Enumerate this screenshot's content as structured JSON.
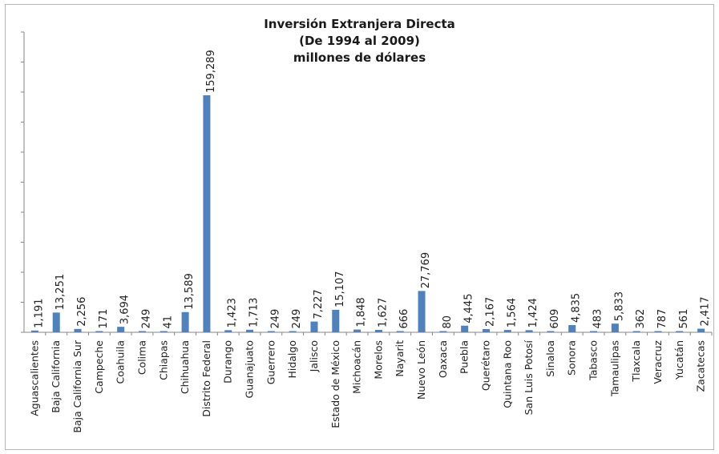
{
  "chart_data": {
    "type": "bar",
    "title": "Inversión Extranjera Directa",
    "subtitle_1": "(De 1994 al 2009)",
    "subtitle_2": "millones de dólares",
    "categories": [
      "Aguascalientes",
      "Baja California",
      "Baja California Sur",
      "Campeche",
      "Coahuila",
      "Colima",
      "Chiapas",
      "Chihuahua",
      "Distrito Federal",
      "Durango",
      "Guanajuato",
      "Guerrero",
      "Hidalgo",
      "Jalisco",
      "Estado de México",
      "Michoacán",
      "Morelos",
      "Nayarit",
      "Nuevo León",
      "Oaxaca",
      "Puebla",
      "Querétaro",
      "Quintana Roo",
      "San Luis Potosí",
      "Sinaloa",
      "Sonora",
      "Tabasco",
      "Tamaulipas",
      "Tlaxcala",
      "Veracruz",
      "Yucatán",
      "Zacatecas"
    ],
    "values": [
      1191,
      13251,
      2256,
      171,
      3694,
      249,
      41,
      13589,
      159289,
      1423,
      1713,
      249,
      249,
      7227,
      15107,
      1848,
      1627,
      666,
      27769,
      80,
      4445,
      2167,
      1564,
      1424,
      609,
      4835,
      483,
      5833,
      362,
      787,
      561,
      2417
    ],
    "value_labels": [
      "1,191",
      "13,251",
      "2,256",
      "171",
      "3,694",
      "249",
      "41",
      "13,589",
      "159,289",
      "1,423",
      "1,713",
      "249",
      "249",
      "7,227",
      "15,107",
      "1,848",
      "1,627",
      "666",
      "27,769",
      "80",
      "4,445",
      "2,167",
      "1,564",
      "1,424",
      "609",
      "4,835",
      "483",
      "5,833",
      "362",
      "787",
      "561",
      "2,417"
    ],
    "ylim": [
      0,
      160000
    ],
    "bar_color": "#4f81bd",
    "axis_color": "#868686",
    "grid": false,
    "legend": "none"
  }
}
